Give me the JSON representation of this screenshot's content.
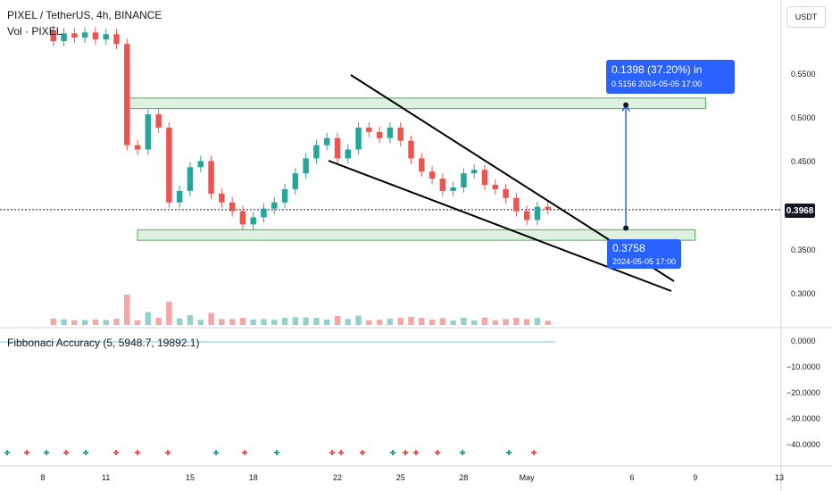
{
  "header": {
    "title": "PIXEL / TetherUS, 4h, BINANCE",
    "volume_label": "Vol · PIXEL",
    "currency_button": "USDT",
    "indicator_label": "Fibbonaci Accuracy (5, 5948.7, 19892.1)"
  },
  "colors": {
    "up": "#26a69a",
    "down": "#ef5350",
    "vol_up": "#93d2cc",
    "vol_down": "#f5a6a5",
    "zone_fill": "#c8e6c9",
    "zone_border": "#4caf50",
    "measure": "#2962ff",
    "fib_line": "#7ec8e3"
  },
  "annotations": {
    "target_box": {
      "line1": "0.1398 (37.20%) in",
      "line2": "0.5156  2024-05-05  17:00"
    },
    "base_box": {
      "line1": "0.3758",
      "line2": "2024-05-05 17:00"
    },
    "current_price": "0.3968"
  },
  "chart_data": [
    {
      "type": "candlestick",
      "title": "PIXEL / TetherUS, 4h, BINANCE",
      "y_ticks": [
        "0.5500",
        "0.5000",
        "0.4500",
        "0.3500",
        "0.3000"
      ],
      "x_ticks": [
        "8",
        "11",
        "15",
        "18",
        "22",
        "25",
        "28",
        "May",
        "6",
        "9",
        "13"
      ],
      "x_tick_dates": [
        "2024-04-08",
        "2024-04-11",
        "2024-04-15",
        "2024-04-18",
        "2024-04-22",
        "2024-04-25",
        "2024-04-28",
        "2024-05-01",
        "2024-05-06",
        "2024-05-09",
        "2024-05-13"
      ],
      "ylim": [
        0.265,
        0.59
      ],
      "current_price": 0.3968,
      "series": [
        {
          "x": "2024-04-12 12:00",
          "close": 0.465
        },
        {
          "x": "2024-04-13 00:00",
          "close": 0.505
        },
        {
          "x": "2024-04-13 12:00",
          "close": 0.49
        },
        {
          "x": "2024-04-14 00:00",
          "close": 0.405
        },
        {
          "x": "2024-04-14 12:00",
          "close": 0.418
        },
        {
          "x": "2024-04-15 00:00",
          "close": 0.445
        },
        {
          "x": "2024-04-15 12:00",
          "close": 0.452
        },
        {
          "x": "2024-04-16 00:00",
          "close": 0.415
        },
        {
          "x": "2024-04-16 12:00",
          "close": 0.405
        },
        {
          "x": "2024-04-17 00:00",
          "close": 0.395
        },
        {
          "x": "2024-04-17 12:00",
          "close": 0.38
        },
        {
          "x": "2024-04-18 00:00",
          "close": 0.388
        },
        {
          "x": "2024-04-18 12:00",
          "close": 0.398
        },
        {
          "x": "2024-04-19 00:00",
          "close": 0.405
        },
        {
          "x": "2024-04-19 12:00",
          "close": 0.42
        },
        {
          "x": "2024-04-20 00:00",
          "close": 0.438
        },
        {
          "x": "2024-04-20 12:00",
          "close": 0.455
        },
        {
          "x": "2024-04-21 00:00",
          "close": 0.47
        },
        {
          "x": "2024-04-21 12:00",
          "close": 0.478
        },
        {
          "x": "2024-04-22 00:00",
          "close": 0.455
        },
        {
          "x": "2024-04-22 12:00",
          "close": 0.465
        },
        {
          "x": "2024-04-23 00:00",
          "close": 0.49
        },
        {
          "x": "2024-04-23 12:00",
          "close": 0.485
        },
        {
          "x": "2024-04-24 00:00",
          "close": 0.478
        },
        {
          "x": "2024-04-24 12:00",
          "close": 0.49
        },
        {
          "x": "2024-04-25 00:00",
          "close": 0.475
        },
        {
          "x": "2024-04-25 12:00",
          "close": 0.455
        },
        {
          "x": "2024-04-26 00:00",
          "close": 0.44
        },
        {
          "x": "2024-04-26 12:00",
          "close": 0.432
        },
        {
          "x": "2024-04-27 00:00",
          "close": 0.418
        },
        {
          "x": "2024-04-27 12:00",
          "close": 0.422
        },
        {
          "x": "2024-04-28 00:00",
          "close": 0.438
        },
        {
          "x": "2024-04-28 12:00",
          "close": 0.442
        },
        {
          "x": "2024-04-29 00:00",
          "close": 0.425
        },
        {
          "x": "2024-04-29 12:00",
          "close": 0.42
        },
        {
          "x": "2024-04-30 00:00",
          "close": 0.41
        },
        {
          "x": "2024-04-30 12:00",
          "close": 0.395
        },
        {
          "x": "2024-05-01 00:00",
          "close": 0.385
        },
        {
          "x": "2024-05-01 12:00",
          "close": 0.4
        },
        {
          "x": "2024-05-02 00:00",
          "close": 0.397
        }
      ],
      "zones": [
        {
          "low": 0.5115,
          "high": 0.5235,
          "from": "2024-04-12 00:00",
          "to": "2024-05-09 12:00"
        },
        {
          "low": 0.362,
          "high": 0.374,
          "from": "2024-04-12 12:00",
          "to": "2024-05-09 00:00"
        }
      ],
      "measure": {
        "from_price": 0.3758,
        "to_price": 0.5156,
        "change": "0.1398 (37.20%)",
        "date": "2024-05-05 17:00"
      }
    },
    {
      "type": "line",
      "title": "Fibbonaci Accuracy (5, 5948.7, 19892.1)",
      "y_ticks": [
        "0.0000",
        "−10.0000",
        "−20.0000",
        "−30.0000",
        "−40.0000"
      ],
      "values_constant": 0.0
    }
  ]
}
